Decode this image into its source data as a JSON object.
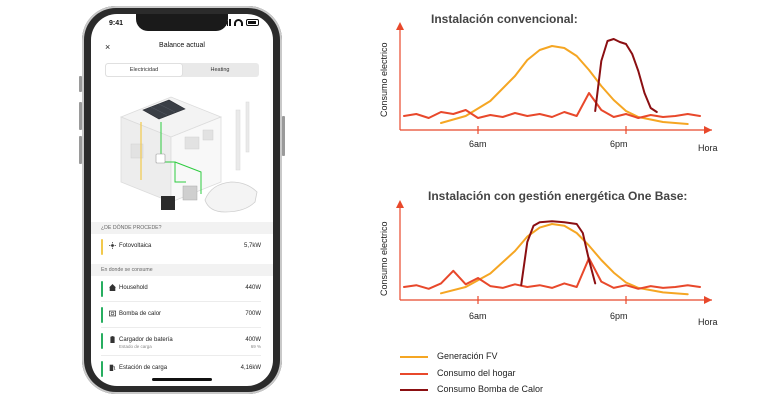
{
  "phone": {
    "status_time": "9:41",
    "header": {
      "close_glyph": "×",
      "title": "Balance actual"
    },
    "tabs": [
      {
        "label": "Electricidad",
        "active": true
      },
      {
        "label": "Heating",
        "active": false
      }
    ],
    "section_source": "¿DE DÓNDE PROCEDE?",
    "source_items": [
      {
        "label": "Fotovoltaica",
        "value": "5,7kW",
        "color": "#f2c94c",
        "icon": "solar-icon"
      }
    ],
    "section_consumption": "En donde se consume",
    "consumption_items": [
      {
        "label": "Household",
        "value": "440W",
        "color": "#27ae60",
        "icon": "house-icon"
      },
      {
        "label": "Bomba de calor",
        "value": "700W",
        "color": "#27ae60",
        "icon": "heat-pump-icon"
      },
      {
        "label": "Cargador de batería",
        "value": "400W",
        "sublabel": "Estado de carga",
        "subvalue": "69 %",
        "color": "#27ae60",
        "icon": "battery-icon"
      },
      {
        "label": "Estación de carga",
        "value": "4,16kW",
        "color": "#27ae60",
        "icon": "ev-charger-icon"
      }
    ]
  },
  "chart_data": [
    {
      "type": "line",
      "title": "Instalación convencional:",
      "ylabel": "Consumo electrico",
      "xlabel": "Hora",
      "xticks": [
        "6am",
        "6pm"
      ],
      "x_range": [
        0,
        24
      ],
      "y_range": [
        0,
        100
      ],
      "series": [
        {
          "name": "Generación FV",
          "color": "#f5a623",
          "x": [
            3,
            5,
            7,
            9,
            10,
            11,
            12,
            13,
            14,
            15,
            16,
            17,
            18,
            19,
            21,
            23
          ],
          "y": [
            3,
            10,
            25,
            50,
            66,
            76,
            80,
            78,
            70,
            56,
            40,
            26,
            15,
            9,
            4,
            2
          ]
        },
        {
          "name": "Consumo del hogar",
          "color": "#e8482b",
          "x": [
            0,
            1,
            2,
            3,
            4,
            5,
            6,
            7,
            8,
            9,
            10,
            11,
            12,
            13,
            14,
            15,
            16,
            17,
            18,
            19,
            20,
            21,
            22,
            23,
            24
          ],
          "y": [
            10,
            12,
            8,
            14,
            12,
            16,
            8,
            11,
            9,
            13,
            10,
            12,
            9,
            14,
            10,
            33,
            16,
            9,
            12,
            8,
            11,
            9,
            10,
            12,
            10
          ]
        },
        {
          "name": "Consumo Bomba de Calor",
          "color": "#8b0f12",
          "x": [
            15.5,
            16,
            16.5,
            17,
            17.5,
            18,
            18.5,
            19,
            19.5,
            20,
            20.5
          ],
          "y": [
            15,
            65,
            85,
            87,
            84,
            82,
            72,
            55,
            33,
            18,
            14
          ]
        }
      ]
    },
    {
      "type": "line",
      "title": "Instalación con gestión energética One Base:",
      "ylabel": "Consumo electrico",
      "xlabel": "Hora",
      "xticks": [
        "6am",
        "6pm"
      ],
      "x_range": [
        0,
        24
      ],
      "y_range": [
        0,
        100
      ],
      "series": [
        {
          "name": "Generación FV",
          "color": "#f5a623",
          "x": [
            3,
            5,
            7,
            9,
            10,
            11,
            12,
            13,
            14,
            15,
            16,
            17,
            18,
            19,
            21,
            23
          ],
          "y": [
            3,
            10,
            25,
            50,
            66,
            76,
            80,
            78,
            70,
            56,
            40,
            26,
            15,
            9,
            4,
            2
          ]
        },
        {
          "name": "Consumo del hogar",
          "color": "#e8482b",
          "x": [
            0,
            1,
            2,
            3,
            4,
            5,
            6,
            7,
            8,
            9,
            10,
            11,
            12,
            13,
            14,
            15,
            16,
            17,
            18,
            19,
            20,
            21,
            22,
            23,
            24
          ],
          "y": [
            10,
            12,
            8,
            14,
            28,
            13,
            20,
            11,
            9,
            13,
            10,
            12,
            9,
            14,
            10,
            42,
            16,
            9,
            12,
            8,
            11,
            9,
            10,
            12,
            10
          ]
        },
        {
          "name": "Consumo Bomba de Calor",
          "color": "#8b0f12",
          "x": [
            9.5,
            10,
            10.5,
            11,
            12,
            13,
            14,
            14.5,
            15,
            15.5
          ],
          "y": [
            12,
            60,
            78,
            82,
            83,
            82,
            80,
            70,
            40,
            14
          ]
        }
      ]
    }
  ],
  "legend": [
    {
      "label": "Generación FV",
      "color": "#f5a623"
    },
    {
      "label": "Consumo del hogar",
      "color": "#e8482b"
    },
    {
      "label": "Consumo Bomba de Calor",
      "color": "#8b0f12"
    }
  ]
}
